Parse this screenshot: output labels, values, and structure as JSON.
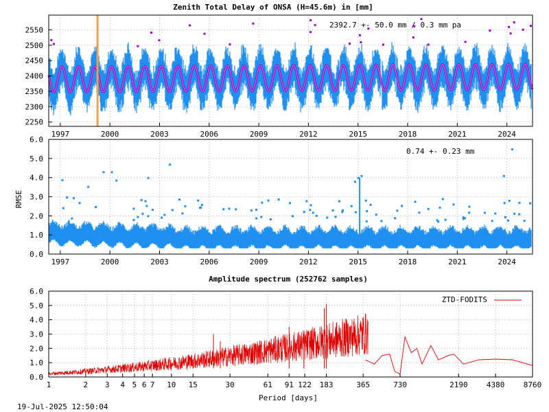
{
  "footer": {
    "timestamp": "19-Jul-2025 12:50:04"
  },
  "chart_data": [
    {
      "type": "scatter",
      "title": "Zenith Total Delay of ONSA (H=45.6m) in [mm]",
      "annotation": "2392.7 +-  50.0 mm /  0.3 mm pa",
      "xlabel": "",
      "ylabel": "",
      "xlim": [
        1996.3,
        2025.55
      ],
      "ylim": [
        2236,
        2598
      ],
      "xticks": [
        "1997",
        "2000",
        "2003",
        "2006",
        "2009",
        "2012",
        "2015",
        "2018",
        "2021",
        "2024"
      ],
      "yticks": [
        "2250",
        "2300",
        "2350",
        "2400",
        "2450",
        "2500",
        "2550"
      ],
      "grid": true,
      "series": [
        {
          "color": "#1f8ff0",
          "mean": 2392.7,
          "amplitude": 40,
          "trend_per_year": 0.3,
          "scatter": 55
        },
        {
          "color": "#a000c8",
          "mean": 2392.7,
          "amplitude": 42,
          "trend_per_year": 0.3,
          "kind": "seasonal-model"
        }
      ],
      "marker": {
        "year": 1999.25,
        "color": "#f0a050"
      },
      "data_gaps": [
        2013.9,
        2016.4,
        2017.3
      ]
    },
    {
      "type": "scatter",
      "title": "",
      "annotation": "0.74 +-  0.23 mm",
      "ylabel": "RMSE",
      "xlim": [
        1996.3,
        2025.55
      ],
      "ylim": [
        0,
        6
      ],
      "xticks": [
        "1997",
        "2000",
        "2003",
        "2006",
        "2009",
        "2012",
        "2015",
        "2018",
        "2021",
        "2024"
      ],
      "yticks": [
        "0.0",
        "1.0",
        "2.0",
        "3.0",
        "4.0",
        "5.0",
        "6.0"
      ],
      "grid": true,
      "series": [
        {
          "color": "#1f8ff0",
          "mean": 0.74,
          "std": 0.23
        }
      ],
      "outliers": [
        {
          "x": 1999.6,
          "y": 4.3
        },
        {
          "x": 2000.1,
          "y": 4.3
        },
        {
          "x": 2002.3,
          "y": 4.0
        },
        {
          "x": 2003.6,
          "y": 4.7
        },
        {
          "x": 2015.0,
          "y": 4.0
        },
        {
          "x": 2015.2,
          "y": 4.1
        },
        {
          "x": 2023.8,
          "y": 4.1
        },
        {
          "x": 2024.3,
          "y": 5.5
        },
        {
          "x": 2014.8,
          "y": 3.8
        }
      ]
    },
    {
      "type": "line",
      "title": "Amplitude spectrum (252762 samples)",
      "xlabel": "Period [days]",
      "ylabel": "",
      "xscale": "log",
      "xlim": [
        1,
        8760
      ],
      "ylim": [
        0,
        6
      ],
      "xticks": [
        "1",
        "2",
        "3",
        "4",
        "5",
        "6",
        "7",
        "10",
        "15",
        "30",
        "61",
        "91",
        "122",
        "183",
        "365",
        "730",
        "2190",
        "4380",
        "8760"
      ],
      "xtick_values": [
        1,
        2,
        3,
        4,
        5,
        6,
        7,
        10,
        15,
        30,
        61,
        91,
        122,
        183,
        365,
        730,
        2190,
        4380,
        8760
      ],
      "yticks": [
        "0.0",
        "1.0",
        "2.0",
        "3.0",
        "4.0",
        "5.0",
        "6.0"
      ],
      "grid": true,
      "legend": "top-right",
      "series": [
        {
          "name": "ZTD-FODITS",
          "color": "#e00000"
        }
      ],
      "peaks": [
        {
          "period": 183,
          "amplitude": 5.1
        },
        {
          "period": 176,
          "amplitude": 4.8
        },
        {
          "period": 120,
          "amplitude": 3.0
        },
        {
          "period": 91,
          "amplitude": 3.5
        },
        {
          "period": 25,
          "amplitude": 2.5
        },
        {
          "period": 22,
          "amplitude": 3.0
        },
        {
          "period": 800,
          "amplitude": 2.8
        },
        {
          "period": 1300,
          "amplitude": 2.2
        },
        {
          "period": 600,
          "amplitude": 1.6
        },
        {
          "period": 2000,
          "amplitude": 1.6
        },
        {
          "period": 3200,
          "amplitude": 1.2
        },
        {
          "period": 8760,
          "amplitude": 0.8
        }
      ]
    }
  ]
}
